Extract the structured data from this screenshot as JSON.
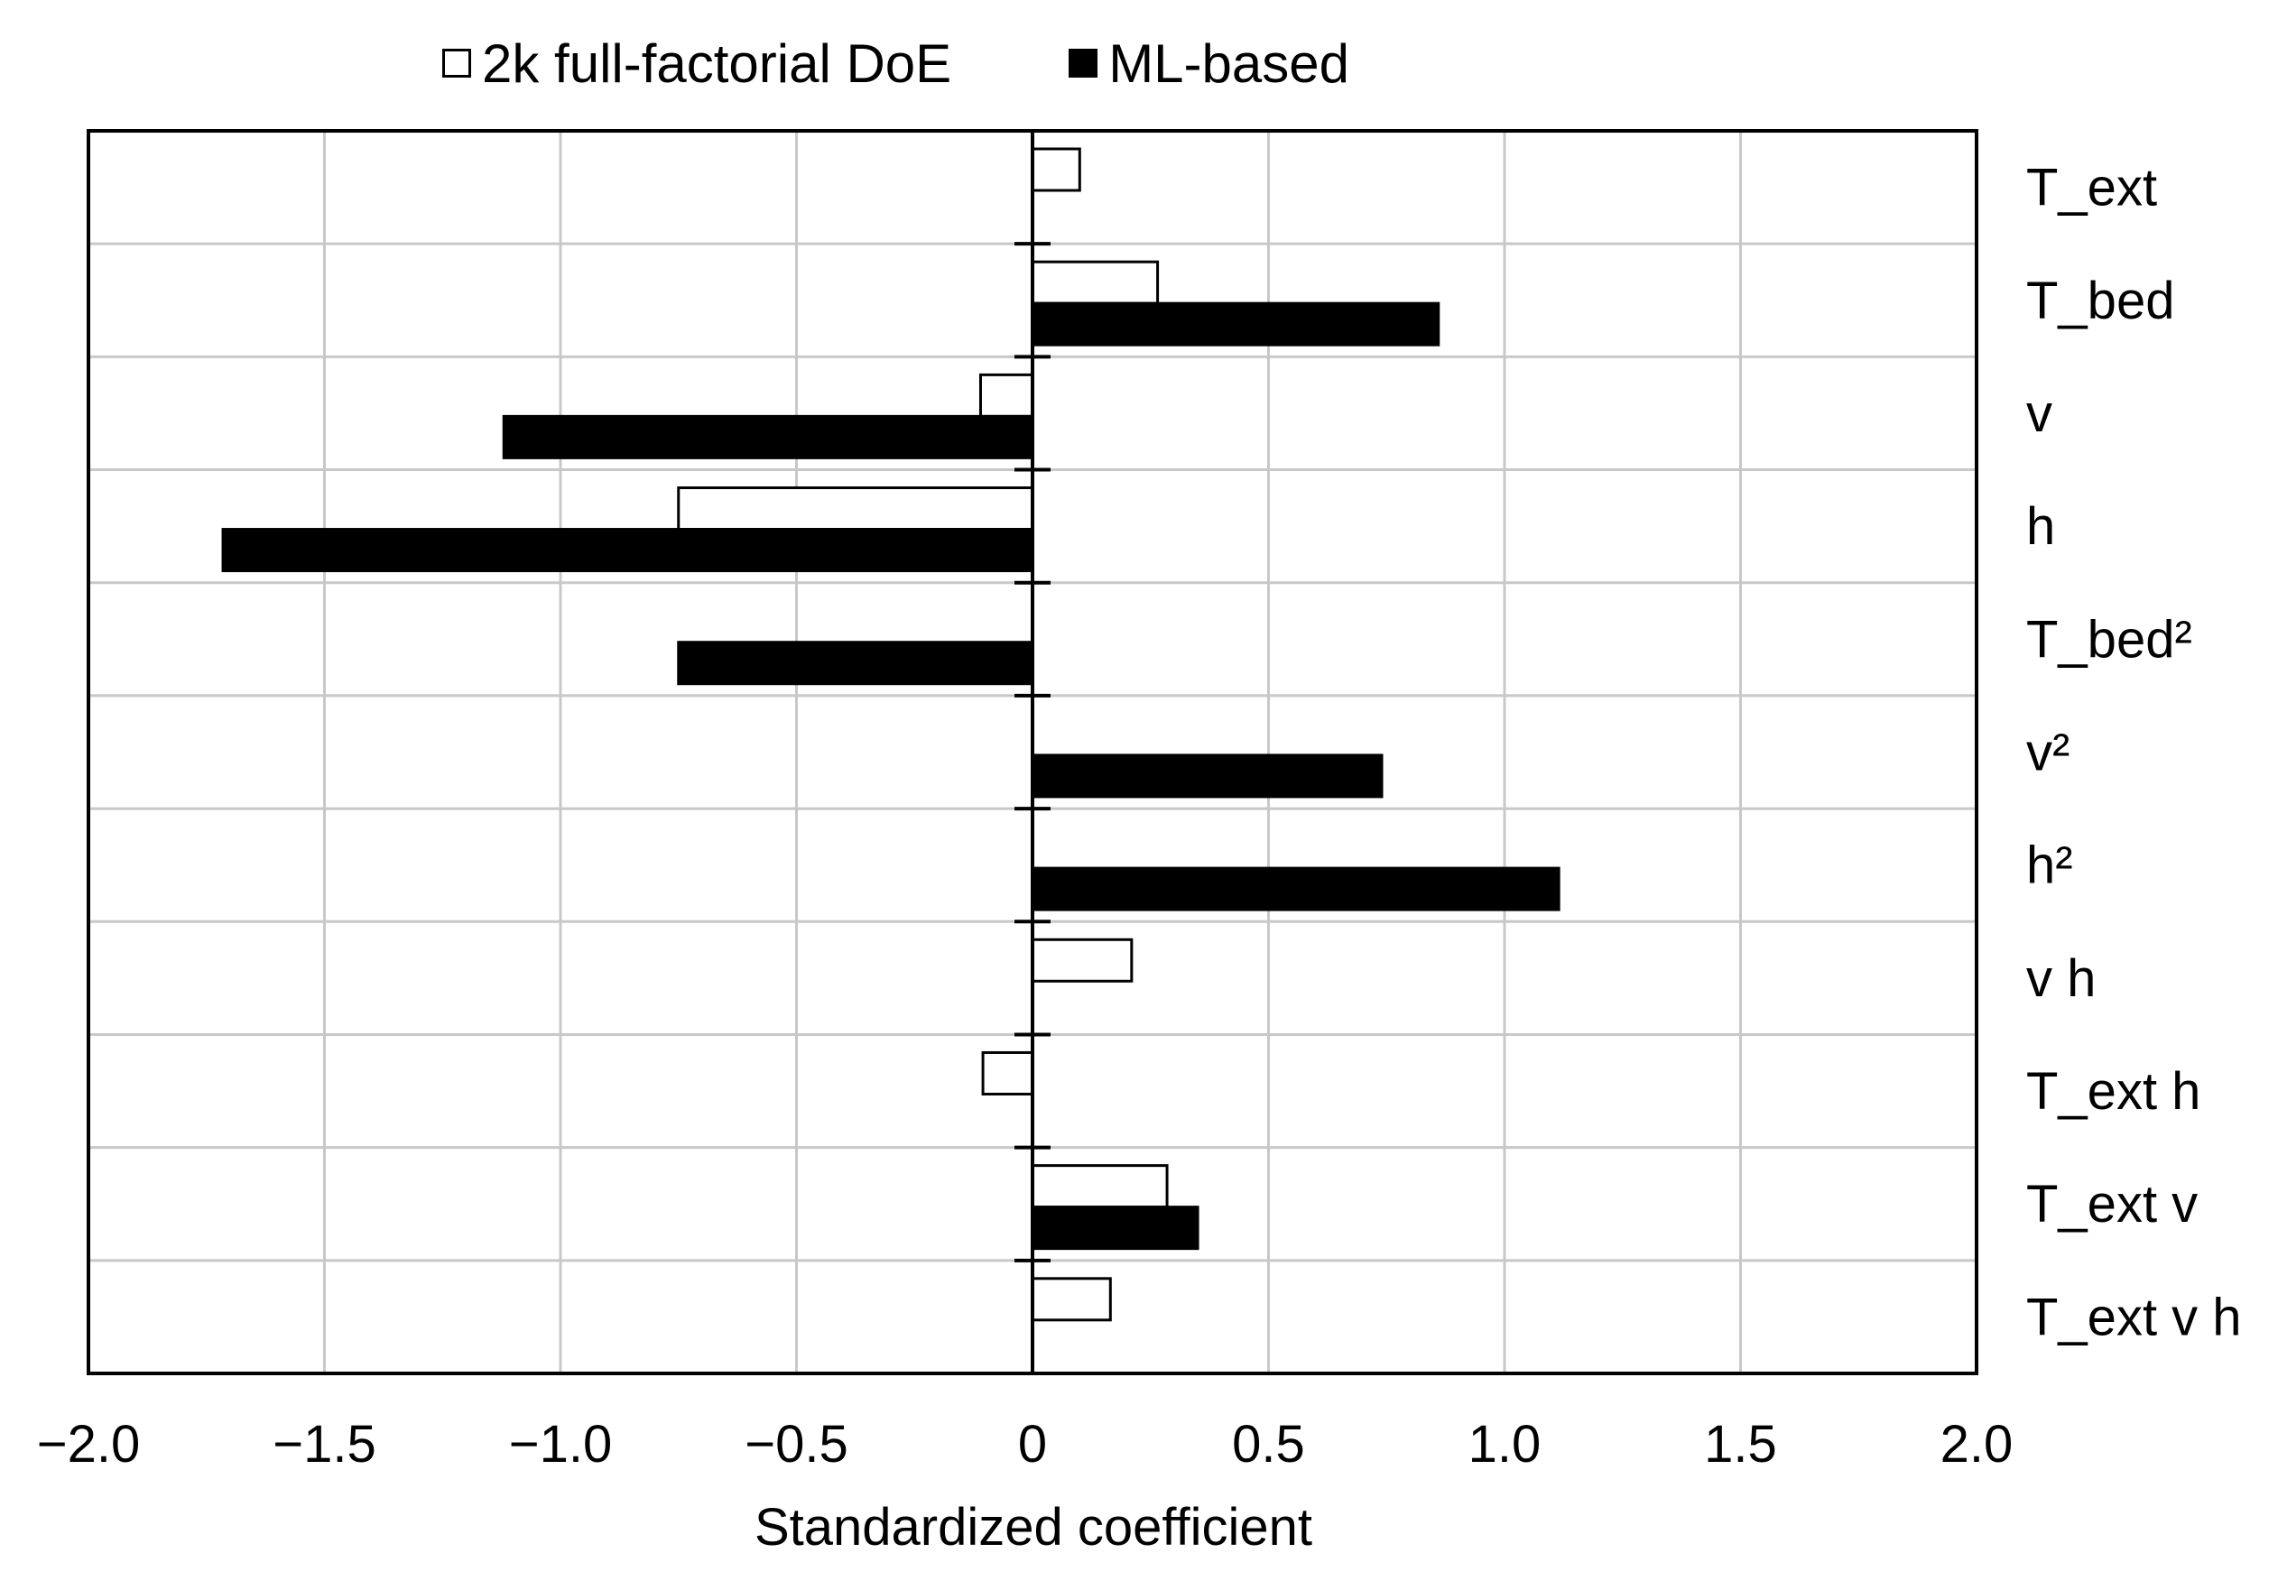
{
  "chart_data": {
    "type": "bar",
    "orientation": "horizontal",
    "title": "",
    "xlabel": "Standardized coefficient",
    "ylabel": "",
    "xlim": [
      -2.0,
      2.0
    ],
    "x_ticks": [
      -2.0,
      -1.5,
      -1.0,
      -0.5,
      0,
      0.5,
      1.0,
      1.5,
      2.0
    ],
    "x_tick_labels": [
      "−2.0",
      "−1.5",
      "−1.0",
      "−0.5",
      "0",
      "0.5",
      "1.0",
      "1.5",
      "2.0"
    ],
    "grid": true,
    "legend_position": "top",
    "categories": [
      "T_ext",
      "T_bed",
      "v",
      "h",
      "T_bed²",
      "v²",
      "h²",
      "v h",
      "T_ext h",
      "T_ext v",
      "T_ext v h"
    ],
    "series": [
      {
        "name": "2k full-factorial DoE",
        "color": "#ffffff",
        "values": [
          0.1,
          0.265,
          -0.11,
          -0.75,
          null,
          null,
          null,
          0.21,
          -0.105,
          0.285,
          0.165
        ]
      },
      {
        "name": "ML-based",
        "color": "#000000",
        "values": [
          null,
          0.86,
          -1.12,
          -1.715,
          -0.75,
          0.74,
          1.115,
          null,
          null,
          0.35,
          null
        ]
      }
    ]
  },
  "legend": {
    "items": [
      {
        "label": "2k full-factorial DoE",
        "color": "#ffffff"
      },
      {
        "label": "ML-based",
        "color": "#000000"
      }
    ]
  },
  "colors": {
    "grid": "#c8c8c8",
    "axis": "#000000",
    "bar_stroke": "#000000"
  }
}
